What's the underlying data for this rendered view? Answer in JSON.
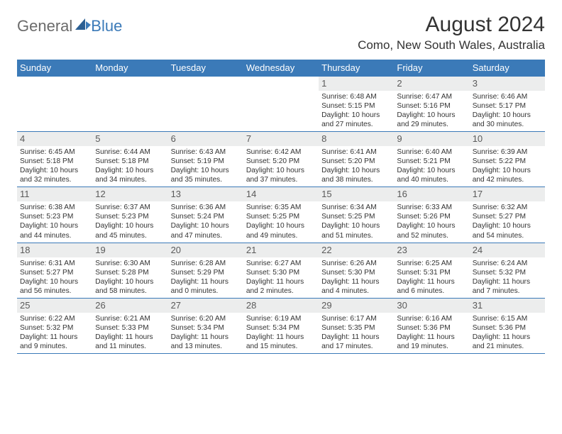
{
  "logo": {
    "text1": "General",
    "text2": "Blue"
  },
  "title": "August 2024",
  "location": "Como, New South Wales, Australia",
  "colors": {
    "header_bg": "#3b7ab8",
    "header_text": "#ffffff",
    "daynum_bg": "#eceded",
    "border": "#3b7ab8",
    "body_text": "#333333"
  },
  "typography": {
    "title_fontsize": 30,
    "location_fontsize": 17,
    "weekday_fontsize": 13,
    "daynum_fontsize": 13,
    "cell_fontsize": 10.2
  },
  "weekdays": [
    "Sunday",
    "Monday",
    "Tuesday",
    "Wednesday",
    "Thursday",
    "Friday",
    "Saturday"
  ],
  "weeks": [
    [
      {
        "n": "",
        "lines": []
      },
      {
        "n": "",
        "lines": []
      },
      {
        "n": "",
        "lines": []
      },
      {
        "n": "",
        "lines": []
      },
      {
        "n": "1",
        "lines": [
          "Sunrise: 6:48 AM",
          "Sunset: 5:15 PM",
          "Daylight: 10 hours",
          "and 27 minutes."
        ]
      },
      {
        "n": "2",
        "lines": [
          "Sunrise: 6:47 AM",
          "Sunset: 5:16 PM",
          "Daylight: 10 hours",
          "and 29 minutes."
        ]
      },
      {
        "n": "3",
        "lines": [
          "Sunrise: 6:46 AM",
          "Sunset: 5:17 PM",
          "Daylight: 10 hours",
          "and 30 minutes."
        ]
      }
    ],
    [
      {
        "n": "4",
        "lines": [
          "Sunrise: 6:45 AM",
          "Sunset: 5:18 PM",
          "Daylight: 10 hours",
          "and 32 minutes."
        ]
      },
      {
        "n": "5",
        "lines": [
          "Sunrise: 6:44 AM",
          "Sunset: 5:18 PM",
          "Daylight: 10 hours",
          "and 34 minutes."
        ]
      },
      {
        "n": "6",
        "lines": [
          "Sunrise: 6:43 AM",
          "Sunset: 5:19 PM",
          "Daylight: 10 hours",
          "and 35 minutes."
        ]
      },
      {
        "n": "7",
        "lines": [
          "Sunrise: 6:42 AM",
          "Sunset: 5:20 PM",
          "Daylight: 10 hours",
          "and 37 minutes."
        ]
      },
      {
        "n": "8",
        "lines": [
          "Sunrise: 6:41 AM",
          "Sunset: 5:20 PM",
          "Daylight: 10 hours",
          "and 38 minutes."
        ]
      },
      {
        "n": "9",
        "lines": [
          "Sunrise: 6:40 AM",
          "Sunset: 5:21 PM",
          "Daylight: 10 hours",
          "and 40 minutes."
        ]
      },
      {
        "n": "10",
        "lines": [
          "Sunrise: 6:39 AM",
          "Sunset: 5:22 PM",
          "Daylight: 10 hours",
          "and 42 minutes."
        ]
      }
    ],
    [
      {
        "n": "11",
        "lines": [
          "Sunrise: 6:38 AM",
          "Sunset: 5:23 PM",
          "Daylight: 10 hours",
          "and 44 minutes."
        ]
      },
      {
        "n": "12",
        "lines": [
          "Sunrise: 6:37 AM",
          "Sunset: 5:23 PM",
          "Daylight: 10 hours",
          "and 45 minutes."
        ]
      },
      {
        "n": "13",
        "lines": [
          "Sunrise: 6:36 AM",
          "Sunset: 5:24 PM",
          "Daylight: 10 hours",
          "and 47 minutes."
        ]
      },
      {
        "n": "14",
        "lines": [
          "Sunrise: 6:35 AM",
          "Sunset: 5:25 PM",
          "Daylight: 10 hours",
          "and 49 minutes."
        ]
      },
      {
        "n": "15",
        "lines": [
          "Sunrise: 6:34 AM",
          "Sunset: 5:25 PM",
          "Daylight: 10 hours",
          "and 51 minutes."
        ]
      },
      {
        "n": "16",
        "lines": [
          "Sunrise: 6:33 AM",
          "Sunset: 5:26 PM",
          "Daylight: 10 hours",
          "and 52 minutes."
        ]
      },
      {
        "n": "17",
        "lines": [
          "Sunrise: 6:32 AM",
          "Sunset: 5:27 PM",
          "Daylight: 10 hours",
          "and 54 minutes."
        ]
      }
    ],
    [
      {
        "n": "18",
        "lines": [
          "Sunrise: 6:31 AM",
          "Sunset: 5:27 PM",
          "Daylight: 10 hours",
          "and 56 minutes."
        ]
      },
      {
        "n": "19",
        "lines": [
          "Sunrise: 6:30 AM",
          "Sunset: 5:28 PM",
          "Daylight: 10 hours",
          "and 58 minutes."
        ]
      },
      {
        "n": "20",
        "lines": [
          "Sunrise: 6:28 AM",
          "Sunset: 5:29 PM",
          "Daylight: 11 hours",
          "and 0 minutes."
        ]
      },
      {
        "n": "21",
        "lines": [
          "Sunrise: 6:27 AM",
          "Sunset: 5:30 PM",
          "Daylight: 11 hours",
          "and 2 minutes."
        ]
      },
      {
        "n": "22",
        "lines": [
          "Sunrise: 6:26 AM",
          "Sunset: 5:30 PM",
          "Daylight: 11 hours",
          "and 4 minutes."
        ]
      },
      {
        "n": "23",
        "lines": [
          "Sunrise: 6:25 AM",
          "Sunset: 5:31 PM",
          "Daylight: 11 hours",
          "and 6 minutes."
        ]
      },
      {
        "n": "24",
        "lines": [
          "Sunrise: 6:24 AM",
          "Sunset: 5:32 PM",
          "Daylight: 11 hours",
          "and 7 minutes."
        ]
      }
    ],
    [
      {
        "n": "25",
        "lines": [
          "Sunrise: 6:22 AM",
          "Sunset: 5:32 PM",
          "Daylight: 11 hours",
          "and 9 minutes."
        ]
      },
      {
        "n": "26",
        "lines": [
          "Sunrise: 6:21 AM",
          "Sunset: 5:33 PM",
          "Daylight: 11 hours",
          "and 11 minutes."
        ]
      },
      {
        "n": "27",
        "lines": [
          "Sunrise: 6:20 AM",
          "Sunset: 5:34 PM",
          "Daylight: 11 hours",
          "and 13 minutes."
        ]
      },
      {
        "n": "28",
        "lines": [
          "Sunrise: 6:19 AM",
          "Sunset: 5:34 PM",
          "Daylight: 11 hours",
          "and 15 minutes."
        ]
      },
      {
        "n": "29",
        "lines": [
          "Sunrise: 6:17 AM",
          "Sunset: 5:35 PM",
          "Daylight: 11 hours",
          "and 17 minutes."
        ]
      },
      {
        "n": "30",
        "lines": [
          "Sunrise: 6:16 AM",
          "Sunset: 5:36 PM",
          "Daylight: 11 hours",
          "and 19 minutes."
        ]
      },
      {
        "n": "31",
        "lines": [
          "Sunrise: 6:15 AM",
          "Sunset: 5:36 PM",
          "Daylight: 11 hours",
          "and 21 minutes."
        ]
      }
    ]
  ]
}
